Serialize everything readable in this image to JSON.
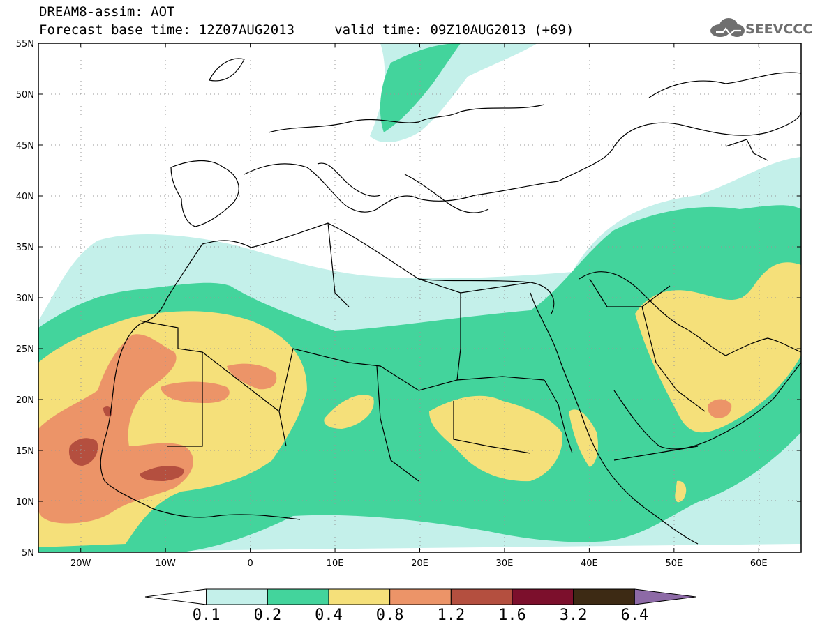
{
  "header": {
    "title_line1": "DREAM8-assim: AOT",
    "title_line2": "Forecast base time: 12Z07AUG2013     valid time: 09Z10AUG2013 (+69)",
    "logo_text": "SEEVCCC",
    "logo_icon": "cloud-icon"
  },
  "map": {
    "variable": "AOT",
    "lon_range": [
      -25,
      65
    ],
    "lat_range": [
      5,
      55
    ],
    "lat_ticks": [
      "5N",
      "10N",
      "15N",
      "20N",
      "25N",
      "30N",
      "35N",
      "40N",
      "45N",
      "50N",
      "55N"
    ],
    "lon_ticks": [
      "20W",
      "10W",
      "0",
      "10E",
      "20E",
      "30E",
      "40E",
      "50E",
      "60E"
    ],
    "grid": "dotted"
  },
  "colorbar": {
    "colors": [
      "#ffffff",
      "#c4f0ea",
      "#43d49c",
      "#f5e07a",
      "#ec9468",
      "#b44f3f",
      "#7c0f2c",
      "#3d2a14",
      "#8d6aa6"
    ],
    "labels": [
      "0.1",
      "0.2",
      "0.4",
      "0.8",
      "1.2",
      "1.6",
      "3.2",
      "6.4"
    ]
  }
}
